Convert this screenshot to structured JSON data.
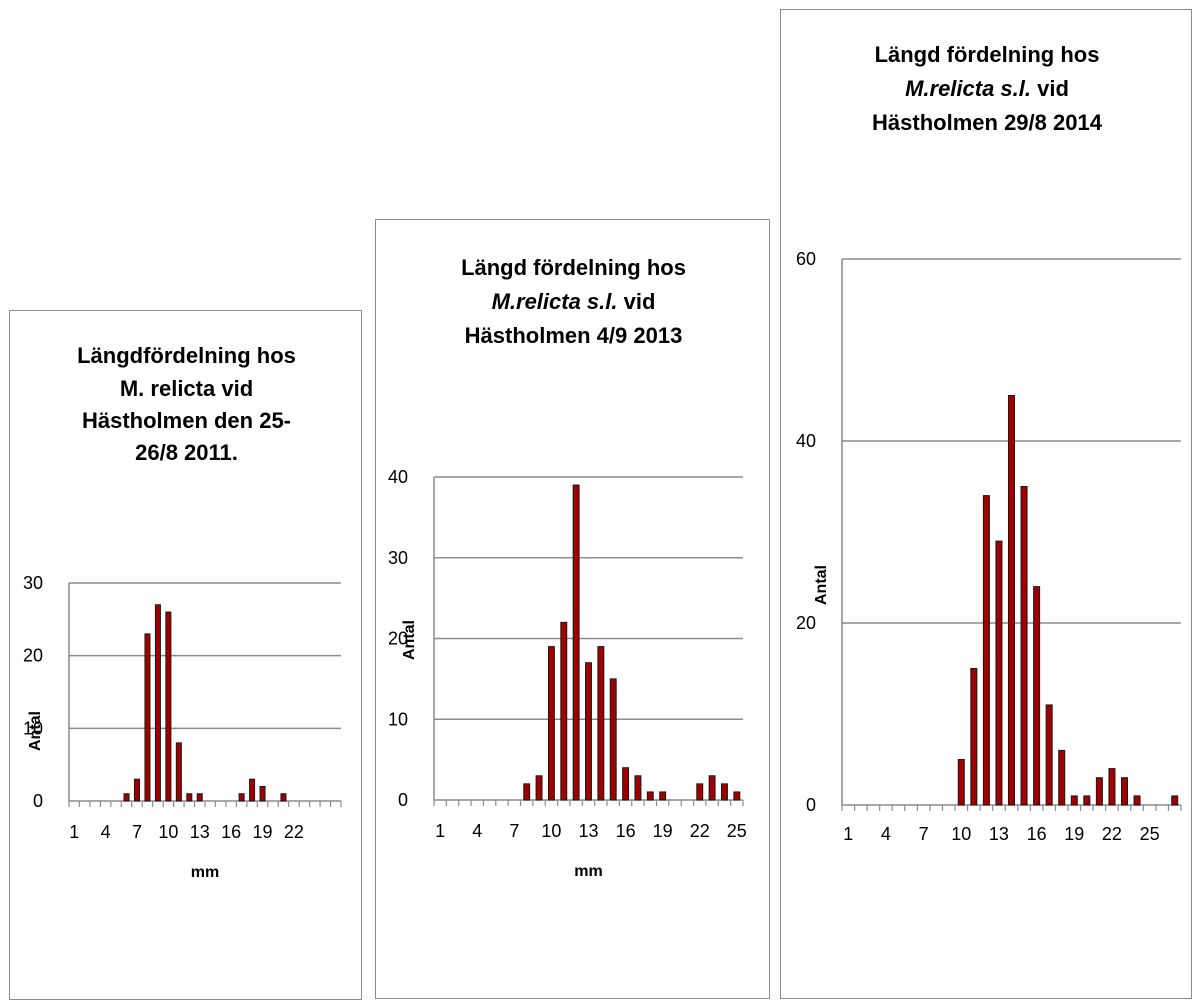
{
  "chart_data": [
    {
      "type": "bar",
      "title_lines": [
        [
          {
            "text": "Längdfördelning hos",
            "italic": false
          }
        ],
        [
          {
            "text": "M. relicta vid",
            "italic": false
          }
        ],
        [
          {
            "text": "Hästholmen  den 25-",
            "italic": false
          }
        ],
        [
          {
            "text": "26/8 2011.",
            "italic": false
          }
        ]
      ],
      "xlabel": "mm",
      "ylabel": "Antal",
      "x": [
        1,
        2,
        3,
        4,
        5,
        6,
        7,
        8,
        9,
        10,
        11,
        12,
        13,
        14,
        15,
        16,
        17,
        18,
        19,
        20,
        21,
        22,
        23,
        24,
        25,
        26
      ],
      "values": [
        0,
        0,
        0,
        0,
        0,
        1,
        3,
        23,
        27,
        26,
        8,
        1,
        1,
        0,
        0,
        0,
        1,
        3,
        2,
        0,
        1,
        0,
        0,
        0,
        0,
        0
      ],
      "x_tick_labels": [
        "1",
        "4",
        "7",
        "10",
        "13",
        "16",
        "19",
        "22"
      ],
      "y_ticks": [
        0,
        10,
        20,
        30
      ],
      "ylim": [
        0,
        30
      ],
      "grid": true,
      "bar_color": "#a00000"
    },
    {
      "type": "bar",
      "title_lines": [
        [
          {
            "text": "Längd fördelning hos",
            "italic": false
          }
        ],
        [
          {
            "text": "M.relicta s.l.",
            "italic": true
          },
          {
            "text": " vid",
            "italic": false
          }
        ],
        [
          {
            "text": "Hästholmen 4/9 2013",
            "italic": false
          }
        ]
      ],
      "xlabel": "mm",
      "ylabel": "Antal",
      "x": [
        1,
        2,
        3,
        4,
        5,
        6,
        7,
        8,
        9,
        10,
        11,
        12,
        13,
        14,
        15,
        16,
        17,
        18,
        19,
        20,
        21,
        22,
        23,
        24,
        25
      ],
      "values": [
        0,
        0,
        0,
        0,
        0,
        0,
        0,
        2,
        3,
        19,
        22,
        39,
        17,
        19,
        15,
        4,
        3,
        1,
        1,
        0,
        0,
        2,
        3,
        2,
        1
      ],
      "x_tick_labels": [
        "1",
        "4",
        "7",
        "10",
        "13",
        "16",
        "19",
        "22",
        "25"
      ],
      "y_ticks": [
        0,
        10,
        20,
        30,
        40
      ],
      "ylim": [
        0,
        40
      ],
      "grid": true,
      "bar_color": "#a00000"
    },
    {
      "type": "bar",
      "title_lines": [
        [
          {
            "text": "Längd fördelning hos",
            "italic": false
          }
        ],
        [
          {
            "text": "M.relicta s.l.",
            "italic": true
          },
          {
            "text": " vid",
            "italic": false
          }
        ],
        [
          {
            "text": "Hästholmen 29/8 2014",
            "italic": false
          }
        ]
      ],
      "xlabel": "",
      "ylabel": "Antal",
      "x": [
        1,
        2,
        3,
        4,
        5,
        6,
        7,
        8,
        9,
        10,
        11,
        12,
        13,
        14,
        15,
        16,
        17,
        18,
        19,
        20,
        21,
        22,
        23,
        24,
        25,
        26,
        27
      ],
      "values": [
        0,
        0,
        0,
        0,
        0,
        0,
        0,
        0,
        0,
        5,
        15,
        34,
        29,
        45,
        35,
        24,
        11,
        6,
        1,
        1,
        3,
        4,
        3,
        1,
        0,
        0,
        1
      ],
      "x_tick_labels": [
        "1",
        "4",
        "7",
        "10",
        "13",
        "16",
        "19",
        "22",
        "25"
      ],
      "y_ticks": [
        0,
        20,
        40,
        60
      ],
      "ylim": [
        0,
        60
      ],
      "grid": true,
      "bar_color": "#a00000"
    }
  ]
}
